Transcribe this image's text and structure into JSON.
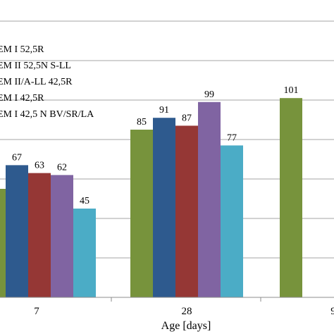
{
  "chart_data": {
    "type": "bar",
    "categories": [
      "7",
      "28",
      "9"
    ],
    "series": [
      {
        "name": "EM I 52,5R",
        "color": "#77933c",
        "values": [
          null,
          85,
          101
        ]
      },
      {
        "name": "EM II 52,5N S-LL",
        "color": "#2e5a8e",
        "values": [
          67,
          91,
          null
        ]
      },
      {
        "name": "EM II/A-LL 42,5R",
        "color": "#953735",
        "values": [
          63,
          87,
          null
        ]
      },
      {
        "name": "EM I 42,5R",
        "color": "#8064a2",
        "values": [
          62,
          99,
          null
        ]
      },
      {
        "name": "EM I 42,5 N BV/SR/LA",
        "color": "#4bacc6",
        "values": [
          45,
          77,
          null
        ]
      }
    ],
    "xlabel": "Age [days]",
    "ylabel": "",
    "ylim": [
      0,
      140
    ],
    "grid": true,
    "legend": "top-left",
    "first_series_partial_bar_at_category_0": 55
  }
}
